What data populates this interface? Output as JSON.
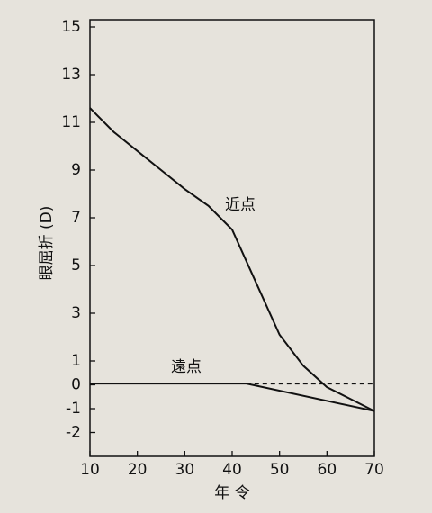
{
  "chart_data": {
    "type": "line",
    "y_label": "眼屈折 (D)",
    "x_label": "年 令",
    "xlim": [
      10,
      70
    ],
    "xticks": [
      10,
      20,
      30,
      40,
      50,
      60,
      70
    ],
    "ylim": [
      -3,
      15
    ],
    "yticks": [
      15,
      13,
      11,
      9,
      7,
      5,
      3,
      1,
      0,
      -1,
      -2
    ],
    "series": [
      {
        "name": "近点",
        "color": "#111111",
        "style": "solid",
        "x": [
          10,
          15,
          20,
          25,
          30,
          35,
          40,
          45,
          50,
          55,
          60,
          65,
          70
        ],
        "values": [
          11.6,
          10.6,
          9.8,
          9.0,
          8.2,
          7.5,
          6.5,
          4.3,
          2.1,
          0.8,
          -0.1,
          -0.6,
          -1.1
        ]
      },
      {
        "name": "遠点",
        "color": "#111111",
        "style": "solid",
        "x": [
          10,
          43,
          70
        ],
        "values": [
          0.05,
          0.05,
          -1.1
        ]
      },
      {
        "color": "#111111",
        "style": "dashed",
        "x": [
          43,
          70
        ],
        "values": [
          0.05,
          0.05
        ]
      }
    ]
  }
}
